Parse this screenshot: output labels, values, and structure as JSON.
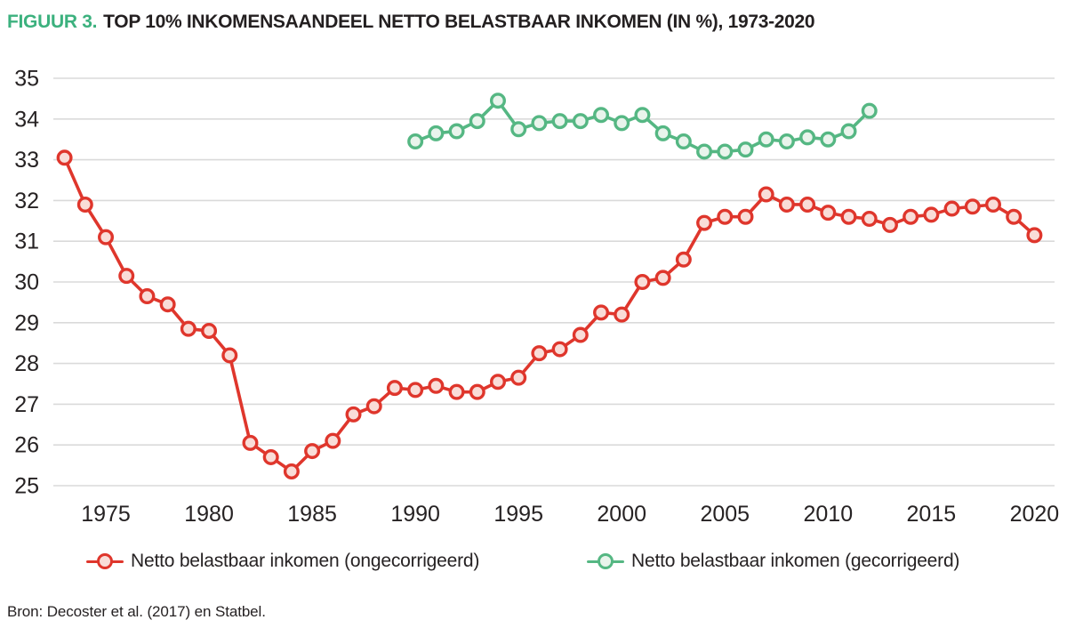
{
  "figure": {
    "label": "FIGUUR 3.",
    "title": "TOP 10% INKOMENSAANDEEL NETTO BELASTBAAR INKOMEN (IN %), 1973-2020"
  },
  "source": "Bron: Decoster et al. (2017) en Statbel.",
  "colors": {
    "accent_green": "#3cb17e",
    "text_dark": "#231f20",
    "gridline": "#dadada",
    "series_red": "#df362c",
    "series_red_fill": "#f9ddd8",
    "series_green": "#55b783",
    "series_green_fill": "#e9f4ec"
  },
  "legend": {
    "items": [
      {
        "label": "Netto belastbaar inkomen (ongecorrigeerd)",
        "series": "red"
      },
      {
        "label": "Netto belastbaar inkomen (gecorrigeerd)",
        "series": "green"
      }
    ]
  },
  "chart_data": {
    "type": "line",
    "title": "TOP 10% INKOMENSAANDEEL NETTO BELASTBAAR INKOMEN (IN %), 1973-2020",
    "xlabel": "",
    "ylabel": "",
    "xlim": [
      1973,
      2020
    ],
    "ylim": [
      25,
      35
    ],
    "y_ticks": [
      35,
      34,
      33,
      32,
      31,
      30,
      29,
      28,
      27,
      26,
      25
    ],
    "x_ticks": [
      1975,
      1980,
      1985,
      1990,
      1995,
      2000,
      2005,
      2010,
      2015,
      2020
    ],
    "grid": "horizontal",
    "legend_position": "bottom",
    "series": [
      {
        "key": "ongecorrigeerd",
        "name": "Netto belastbaar inkomen (ongecorrigeerd)",
        "color": "#df362c",
        "marker_fill": "#f9ddd8",
        "x": [
          1973,
          1974,
          1975,
          1976,
          1977,
          1978,
          1979,
          1980,
          1981,
          1982,
          1983,
          1984,
          1985,
          1986,
          1987,
          1988,
          1989,
          1990,
          1991,
          1992,
          1993,
          1994,
          1995,
          1996,
          1997,
          1998,
          1999,
          2000,
          2001,
          2002,
          2003,
          2004,
          2005,
          2006,
          2007,
          2008,
          2009,
          2010,
          2011,
          2012,
          2013,
          2014,
          2015,
          2016,
          2017,
          2018,
          2019,
          2020
        ],
        "values": [
          33.05,
          31.9,
          31.1,
          30.15,
          29.65,
          29.45,
          28.85,
          28.8,
          28.2,
          26.05,
          25.7,
          25.35,
          25.85,
          26.1,
          26.75,
          26.95,
          27.4,
          27.35,
          27.45,
          27.3,
          27.3,
          27.55,
          27.65,
          28.25,
          28.35,
          28.7,
          29.25,
          29.2,
          30.0,
          30.1,
          30.55,
          31.45,
          31.6,
          31.6,
          32.15,
          31.9,
          31.9,
          31.7,
          31.6,
          31.55,
          31.4,
          31.6,
          31.65,
          31.8,
          31.85,
          31.9,
          31.6,
          31.15
        ]
      },
      {
        "key": "gecorrigeerd",
        "name": "Netto belastbaar inkomen (gecorrigeerd)",
        "color": "#55b783",
        "marker_fill": "#e9f4ec",
        "x": [
          1990,
          1991,
          1992,
          1993,
          1994,
          1995,
          1996,
          1997,
          1998,
          1999,
          2000,
          2001,
          2002,
          2003,
          2004,
          2005,
          2006,
          2007,
          2008,
          2009,
          2010,
          2011,
          2012
        ],
        "values": [
          33.45,
          33.65,
          33.7,
          33.95,
          34.45,
          33.75,
          33.9,
          33.95,
          33.95,
          34.1,
          33.9,
          34.1,
          33.65,
          33.45,
          33.2,
          33.2,
          33.25,
          33.5,
          33.45,
          33.55,
          33.5,
          33.7,
          34.2
        ]
      }
    ]
  }
}
